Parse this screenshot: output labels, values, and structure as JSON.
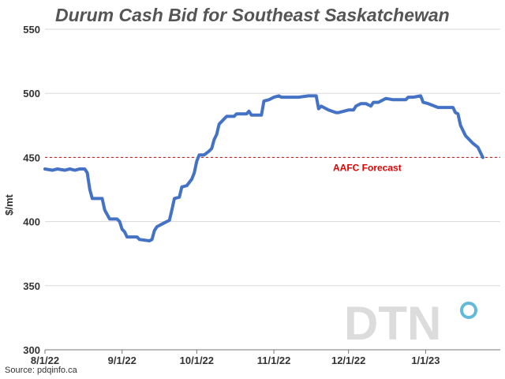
{
  "chart_data": {
    "type": "line",
    "title": "Durum Cash Bid for Southeast Saskatchewan",
    "ylabel": "$/mt",
    "xlabel": "",
    "ylim": [
      300,
      550
    ],
    "yticks": [
      300,
      350,
      400,
      450,
      500,
      550
    ],
    "xlim": [
      "2022-08-01",
      "2023-01-31"
    ],
    "xticks": [
      {
        "date": "2022-08-01",
        "label": "8/1/22"
      },
      {
        "date": "2022-09-01",
        "label": "9/1/22"
      },
      {
        "date": "2022-10-01",
        "label": "10/1/22"
      },
      {
        "date": "2022-11-01",
        "label": "11/1/22"
      },
      {
        "date": "2022-12-01",
        "label": "12/1/22"
      },
      {
        "date": "2023-01-01",
        "label": "1/1/23"
      }
    ],
    "grid": "horizontal",
    "series": [
      {
        "name": "",
        "color": "#4472c4",
        "points": [
          [
            "2022-08-01",
            441
          ],
          [
            "2022-08-04",
            440
          ],
          [
            "2022-08-06",
            441
          ],
          [
            "2022-08-09",
            440
          ],
          [
            "2022-08-11",
            441
          ],
          [
            "2022-08-13",
            440
          ],
          [
            "2022-08-15",
            441
          ],
          [
            "2022-08-17",
            441
          ],
          [
            "2022-08-18",
            438
          ],
          [
            "2022-08-19",
            425
          ],
          [
            "2022-08-20",
            418
          ],
          [
            "2022-08-24",
            418
          ],
          [
            "2022-08-25",
            409
          ],
          [
            "2022-08-27",
            402
          ],
          [
            "2022-08-30",
            402
          ],
          [
            "2022-08-31",
            400
          ],
          [
            "2022-09-01",
            394
          ],
          [
            "2022-09-02",
            392
          ],
          [
            "2022-09-03",
            388
          ],
          [
            "2022-09-07",
            388
          ],
          [
            "2022-09-08",
            386
          ],
          [
            "2022-09-12",
            385
          ],
          [
            "2022-09-13",
            386
          ],
          [
            "2022-09-14",
            393
          ],
          [
            "2022-09-15",
            396
          ],
          [
            "2022-09-18",
            399
          ],
          [
            "2022-09-20",
            401
          ],
          [
            "2022-09-21",
            409
          ],
          [
            "2022-09-22",
            418
          ],
          [
            "2022-09-24",
            419
          ],
          [
            "2022-09-25",
            427
          ],
          [
            "2022-09-27",
            428
          ],
          [
            "2022-09-29",
            433
          ],
          [
            "2022-09-30",
            438
          ],
          [
            "2022-10-01",
            447
          ],
          [
            "2022-10-02",
            452
          ],
          [
            "2022-10-04",
            452
          ],
          [
            "2022-10-06",
            455
          ],
          [
            "2022-10-07",
            457
          ],
          [
            "2022-10-08",
            464
          ],
          [
            "2022-10-09",
            468
          ],
          [
            "2022-10-10",
            476
          ],
          [
            "2022-10-12",
            480
          ],
          [
            "2022-10-13",
            482
          ],
          [
            "2022-10-16",
            482
          ],
          [
            "2022-10-17",
            484
          ],
          [
            "2022-10-21",
            484
          ],
          [
            "2022-10-22",
            486
          ],
          [
            "2022-10-23",
            483
          ],
          [
            "2022-10-27",
            483
          ],
          [
            "2022-10-28",
            494
          ],
          [
            "2022-10-30",
            495
          ],
          [
            "2022-11-01",
            497
          ],
          [
            "2022-11-03",
            498
          ],
          [
            "2022-11-04",
            497
          ],
          [
            "2022-11-07",
            497
          ],
          [
            "2022-11-11",
            497
          ],
          [
            "2022-11-15",
            498
          ],
          [
            "2022-11-18",
            498
          ],
          [
            "2022-11-19",
            488
          ],
          [
            "2022-11-20",
            490
          ],
          [
            "2022-11-23",
            487
          ],
          [
            "2022-11-26",
            485
          ],
          [
            "2022-11-27",
            485
          ],
          [
            "2022-11-29",
            486
          ],
          [
            "2022-12-01",
            487
          ],
          [
            "2022-12-03",
            487
          ],
          [
            "2022-12-04",
            490
          ],
          [
            "2022-12-06",
            492
          ],
          [
            "2022-12-08",
            492
          ],
          [
            "2022-12-10",
            490
          ],
          [
            "2022-12-11",
            493
          ],
          [
            "2022-12-13",
            493
          ],
          [
            "2022-12-16",
            496
          ],
          [
            "2022-12-19",
            495
          ],
          [
            "2022-12-24",
            495
          ],
          [
            "2022-12-25",
            497
          ],
          [
            "2022-12-27",
            497
          ],
          [
            "2022-12-30",
            498
          ],
          [
            "2022-12-31",
            493
          ],
          [
            "2023-01-02",
            492
          ],
          [
            "2023-01-06",
            489
          ],
          [
            "2023-01-12",
            489
          ],
          [
            "2023-01-13",
            485
          ],
          [
            "2023-01-14",
            484
          ],
          [
            "2023-01-15",
            475
          ],
          [
            "2023-01-17",
            467
          ],
          [
            "2023-01-20",
            461
          ],
          [
            "2023-01-22",
            458
          ],
          [
            "2023-01-24",
            450
          ]
        ]
      }
    ],
    "reference_lines": [
      {
        "label": "AAFC Forecast",
        "value": 450,
        "color": "#e00000",
        "style": "dashed"
      }
    ]
  },
  "watermark": {
    "text": "DTN",
    "dot_color": "#62b9d8"
  },
  "source": "Source: pdqinfo.ca"
}
